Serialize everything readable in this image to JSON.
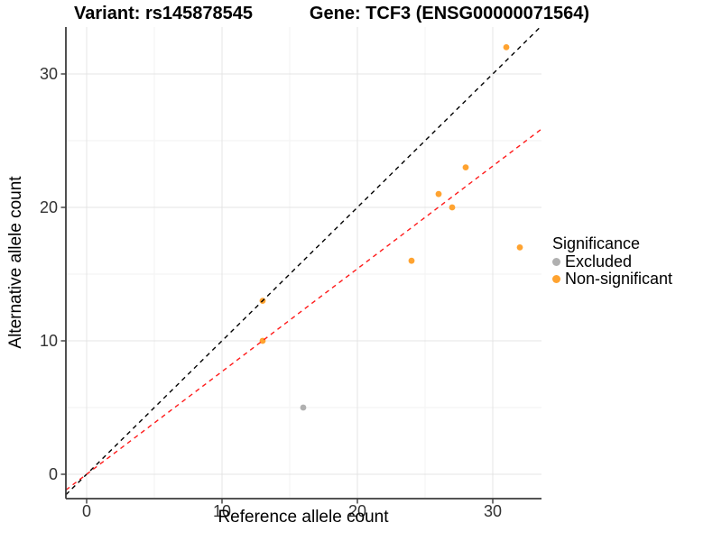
{
  "header": {
    "variant_title": "Variant: rs145878545",
    "gene_title": "Gene: TCF3 (ENSG00000071564)"
  },
  "chart_data": {
    "type": "scatter",
    "xlabel": "Reference allele count",
    "ylabel": "Alternative allele count",
    "xlim": [
      -1.6,
      33.6
    ],
    "ylim": [
      -1.6,
      33.6
    ],
    "x_ticks": [
      0,
      10,
      20,
      30
    ],
    "y_ticks": [
      0,
      10,
      20,
      30
    ],
    "x_minor_ticks": [
      5,
      15,
      25
    ],
    "y_minor_ticks": [
      5,
      15,
      25
    ],
    "grid": true,
    "series": [
      {
        "name": "Excluded",
        "color": "#b0b0b0",
        "points": [
          [
            16,
            5
          ]
        ]
      },
      {
        "name": "Non-significant",
        "color": "#ffa330",
        "points": [
          [
            13,
            10
          ],
          [
            13,
            13
          ],
          [
            24,
            16
          ],
          [
            26,
            21
          ],
          [
            27,
            20
          ],
          [
            28,
            23
          ],
          [
            31,
            32
          ],
          [
            32,
            17
          ]
        ]
      }
    ],
    "lines": [
      {
        "name": "identity-line",
        "slope": 1,
        "intercept": 0,
        "color": "#000000",
        "style": "dashed"
      },
      {
        "name": "fitted-ratio-line",
        "slope": 0.77,
        "intercept": 0,
        "color": "#ff1a1a",
        "style": "dashed"
      }
    ],
    "legend": {
      "title": "Significance",
      "position": "right",
      "items": [
        {
          "label": "Excluded",
          "color": "#b0b0b0"
        },
        {
          "label": "Non-significant",
          "color": "#ffa330"
        }
      ]
    },
    "style": {
      "major_grid_color": "#e4e4e4",
      "minor_grid_color": "#f2f2f2",
      "axis_color": "#3c3c3c",
      "tick_label_color": "#333333",
      "background": "#ffffff"
    }
  }
}
